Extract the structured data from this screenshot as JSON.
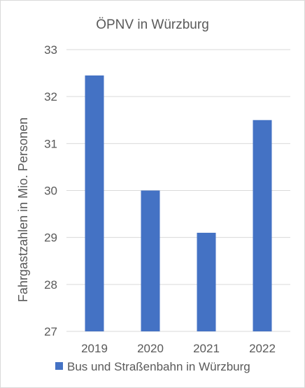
{
  "chart_data": {
    "type": "bar",
    "title": "ÖPNV in Würzburg",
    "xlabel": "",
    "ylabel": "Fahrgastzahlen in Mio. Personen",
    "categories": [
      "2019",
      "2020",
      "2021",
      "2022"
    ],
    "series": [
      {
        "name": "Bus und Straßenbahn in Würzburg",
        "values": [
          32.45,
          30.0,
          29.1,
          31.5
        ],
        "color": "#4472c4"
      }
    ],
    "ylim": [
      27,
      33
    ],
    "yticks": [
      "27",
      "28",
      "29",
      "30",
      "31",
      "32",
      "33"
    ],
    "grid": true,
    "legend": "bottom"
  }
}
